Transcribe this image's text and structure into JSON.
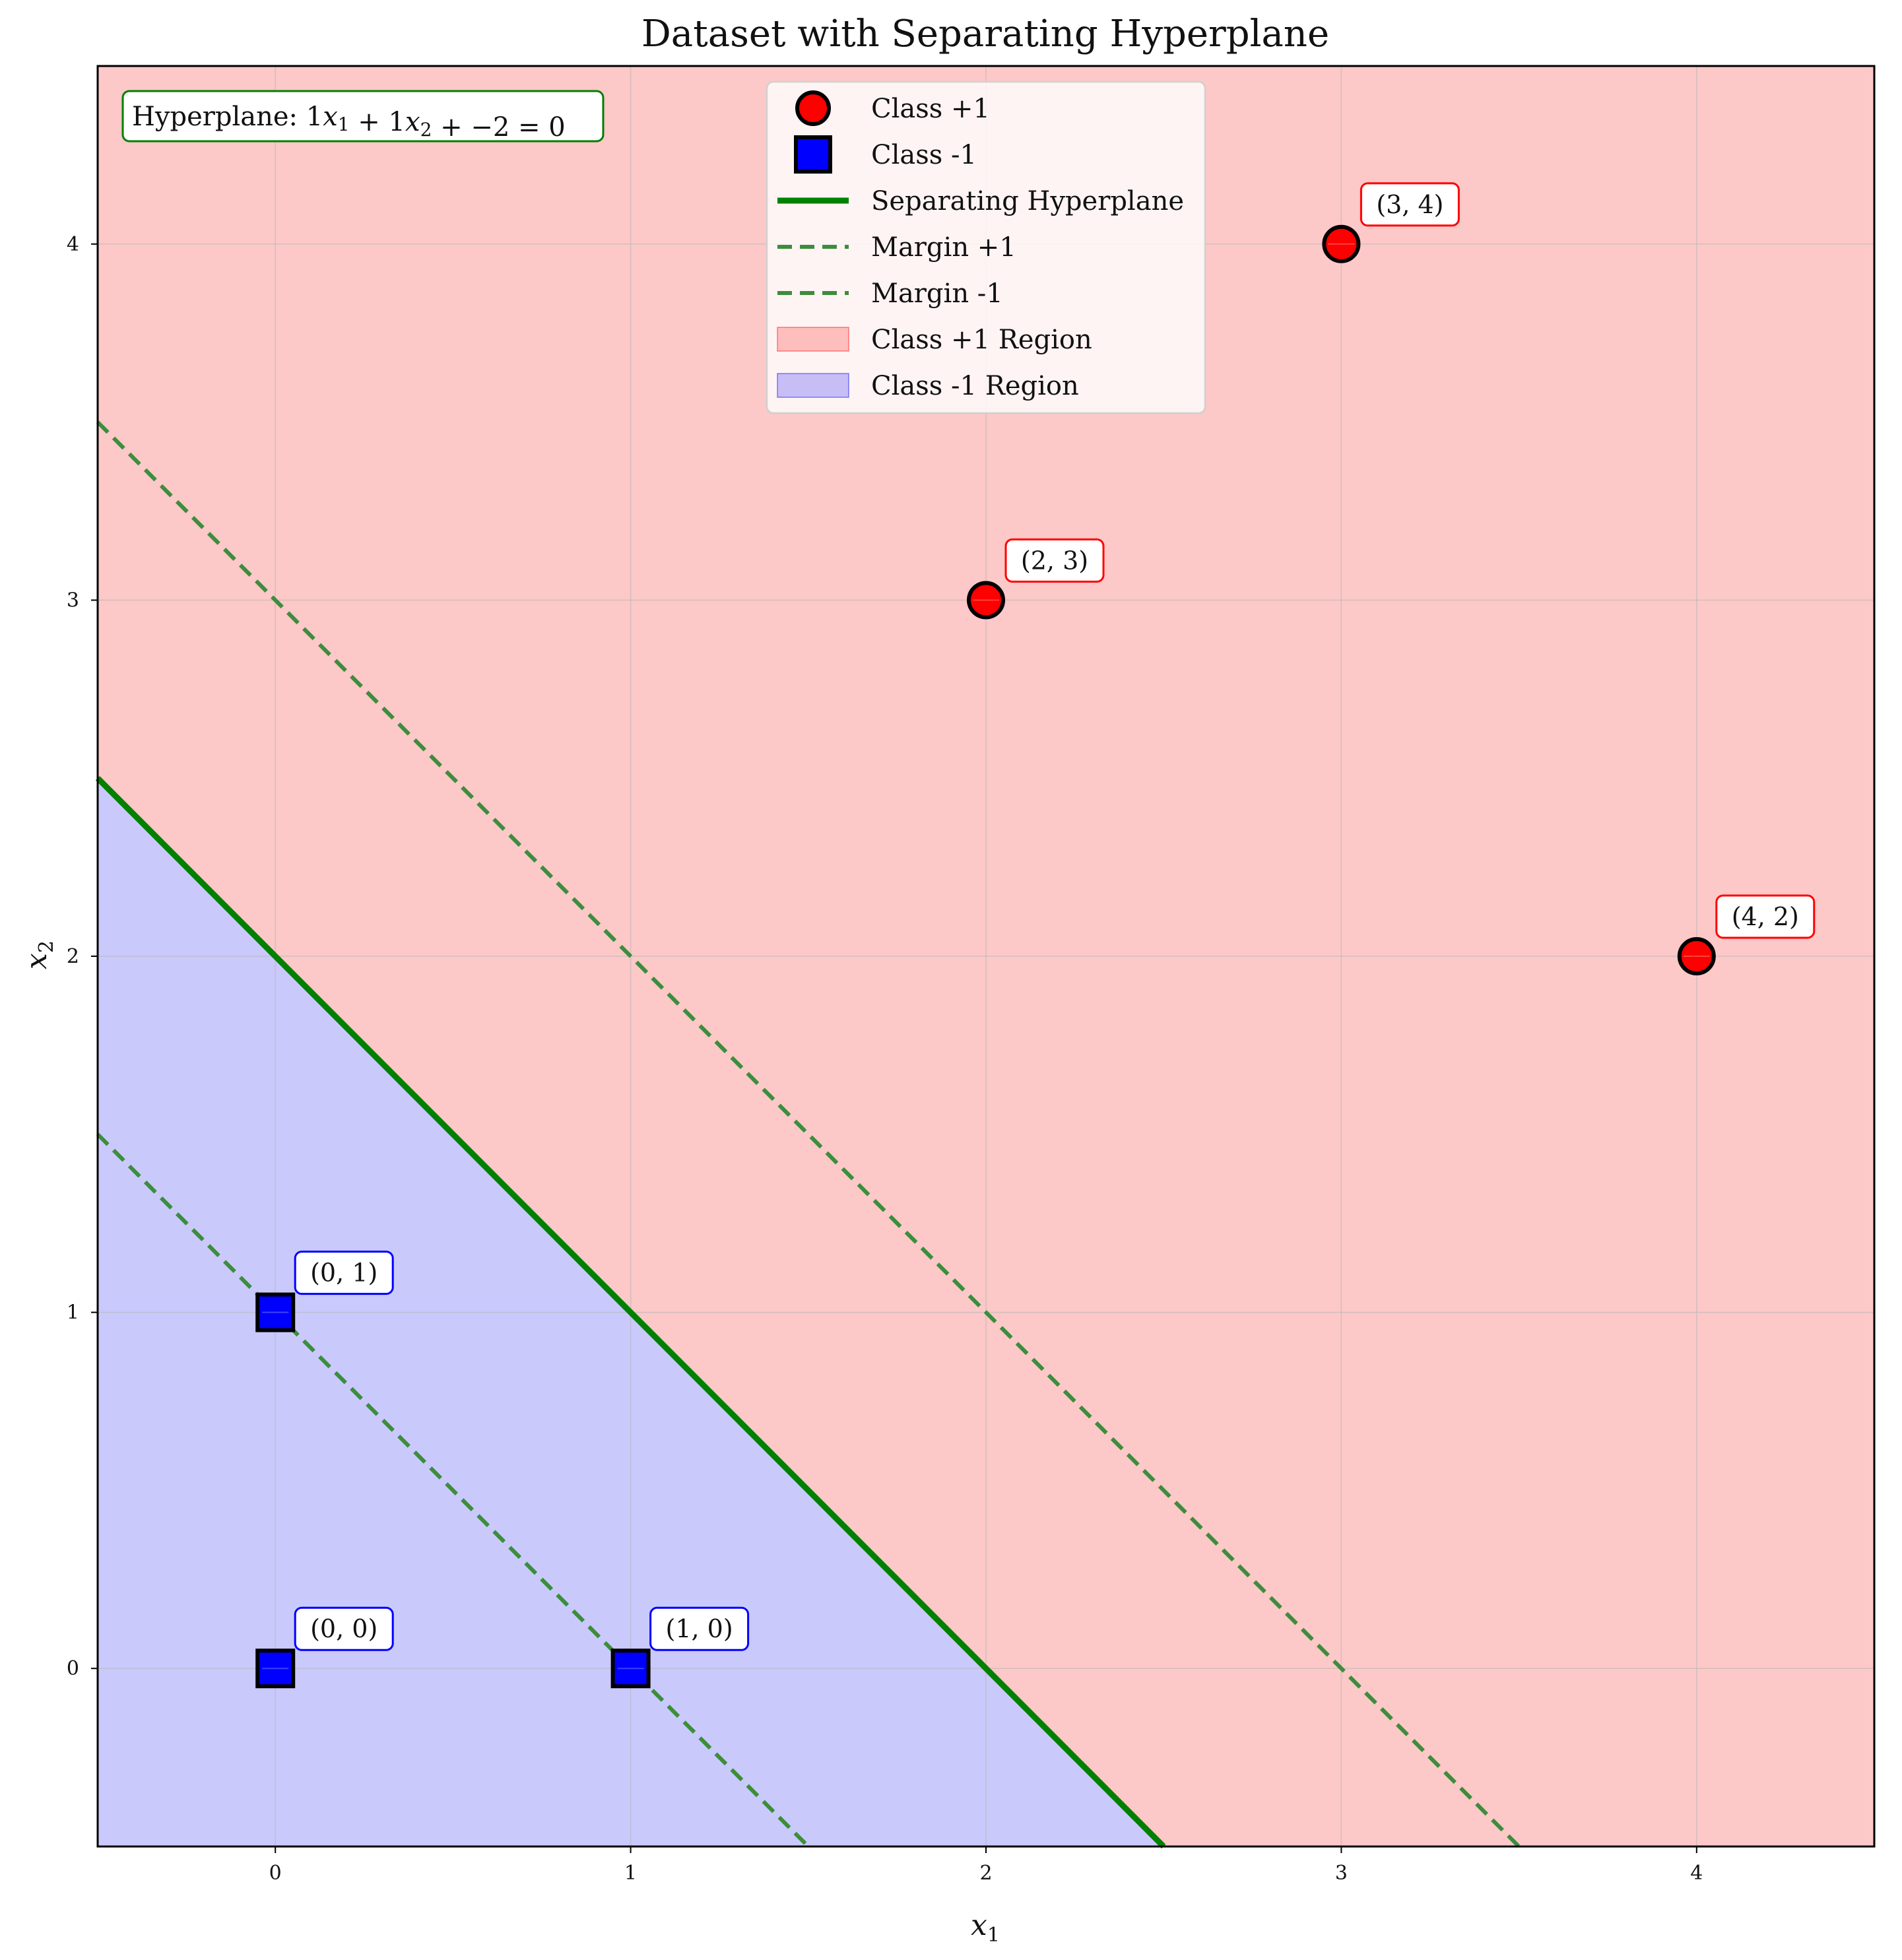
{
  "chart_data": {
    "type": "scatter",
    "title": "Dataset with Separating Hyperplane",
    "xlabel": "x1",
    "ylabel": "x2",
    "xlim": [
      -0.5,
      4.5
    ],
    "ylim": [
      -0.5,
      4.5
    ],
    "xticks": [
      0,
      1,
      2,
      3,
      4
    ],
    "yticks": [
      0,
      1,
      2,
      3,
      4
    ],
    "grid": true,
    "legend_position": "top-center",
    "hyperplane": {
      "w1": 1,
      "w2": 1,
      "b": -2,
      "equation_text": "Hyperplane: 1x1 + 1x2 + −2 = 0",
      "margin_offsets": [
        1,
        -1
      ]
    },
    "series": [
      {
        "name": "Class +1",
        "marker": "circle",
        "color": "#ff0000",
        "points": [
          [
            2,
            3
          ],
          [
            3,
            4
          ],
          [
            4,
            2
          ]
        ],
        "labels": [
          "(2, 3)",
          "(3, 4)",
          "(4, 2)"
        ]
      },
      {
        "name": "Class -1",
        "marker": "square",
        "color": "#0000ff",
        "points": [
          [
            0,
            0
          ],
          [
            0,
            1
          ],
          [
            1,
            0
          ]
        ],
        "labels": [
          "(0, 0)",
          "(0, 1)",
          "(1, 0)"
        ]
      }
    ],
    "legend": [
      {
        "label": "Class +1",
        "kind": "circle",
        "color": "#ff0000"
      },
      {
        "label": "Class -1",
        "kind": "square",
        "color": "#0000ff"
      },
      {
        "label": "Separating Hyperplane",
        "kind": "line",
        "color": "#008000"
      },
      {
        "label": "Margin +1",
        "kind": "dash",
        "color": "#008000"
      },
      {
        "label": "Margin -1",
        "kind": "dash",
        "color": "#008000"
      },
      {
        "label": "Class +1 Region",
        "kind": "patch",
        "color": "#ff0000"
      },
      {
        "label": "Class -1 Region",
        "kind": "patch",
        "color": "#0000ff"
      }
    ],
    "colors": {
      "positive_region": "#fcc8c8",
      "negative_region": "#cac9fc",
      "hyperplane": "#008000",
      "margin": "#3c8d3c"
    }
  }
}
